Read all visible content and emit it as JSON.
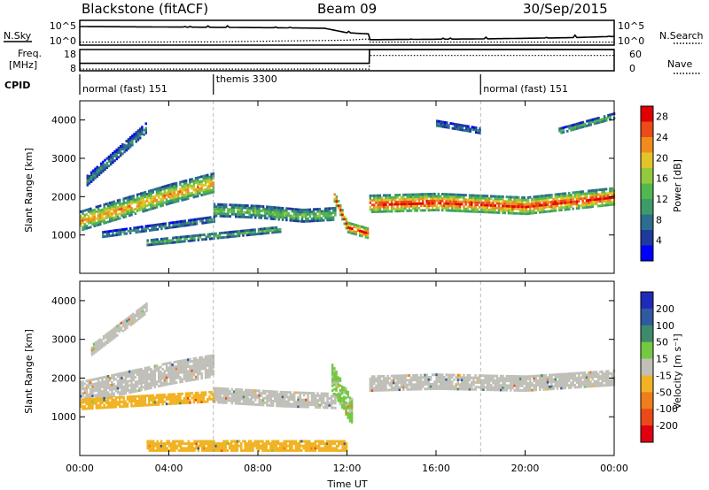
{
  "header": {
    "station": "Blackstone (fitACF)",
    "beam": "Beam 09",
    "date": "30/Sep/2015"
  },
  "sidebar_labels": {
    "nsky": "N.Sky",
    "freq_line1": "Freq.",
    "freq_line2": "[MHz]",
    "cpid": "CPID",
    "nsearch": "N.Search",
    "nave": "Nave"
  },
  "chart_data": [
    {
      "type": "line",
      "name": "noise-panel",
      "x_unit": "hours UT",
      "xlim": [
        0,
        24
      ],
      "left_ticks": [
        "10^5",
        "10^0"
      ],
      "right_ticks": [
        "10^5",
        "10^0"
      ],
      "series": [
        {
          "label": "N.Sky",
          "style": "solid",
          "x": [
            0,
            6,
            9,
            11,
            12,
            13,
            13.01,
            18,
            22,
            24
          ],
          "level": [
            0.75,
            0.72,
            0.7,
            0.68,
            0.5,
            0.45,
            0.22,
            0.25,
            0.3,
            0.35
          ]
        },
        {
          "label": "N.Search",
          "style": "dotted",
          "x": [
            0,
            6,
            12,
            13,
            13.01,
            24
          ],
          "level": [
            0.12,
            0.13,
            0.2,
            0.25,
            0.12,
            0.12
          ]
        }
      ]
    },
    {
      "type": "line",
      "name": "frequency-nave-panel",
      "xlim": [
        0,
        24
      ],
      "left_ticks": [
        "18",
        "8"
      ],
      "right_ticks": [
        "60",
        "0"
      ],
      "series": [
        {
          "label": "Freq",
          "style": "solid",
          "x": [
            0,
            13,
            13.01,
            24
          ],
          "level": [
            0.35,
            0.35,
            1.0,
            1.0
          ]
        },
        {
          "label": "Nave",
          "style": "dotted",
          "x": [
            0,
            13,
            13.01,
            24
          ],
          "level": [
            0.08,
            0.08,
            0.72,
            0.72
          ]
        }
      ]
    },
    {
      "type": "table",
      "name": "cpid-bar",
      "segments": [
        {
          "start": 0,
          "end": 6,
          "label": "normal (fast) 151"
        },
        {
          "start": 6,
          "end": 18,
          "label": "themis 3300"
        },
        {
          "start": 18,
          "end": 24,
          "label": "normal (fast) 151"
        }
      ]
    },
    {
      "type": "heatmap",
      "name": "power-panel",
      "xlim": [
        0,
        24
      ],
      "ylim": [
        0,
        4500
      ],
      "ylabel": "Slant Range [km]",
      "yticks": [
        1000,
        2000,
        3000,
        4000
      ],
      "colorbar": {
        "label": "Power [dB]",
        "ticks": [
          4,
          8,
          12,
          16,
          20,
          24,
          28
        ],
        "range": [
          0,
          30
        ]
      },
      "bands": [
        {
          "x": [
            0,
            2,
            4,
            6
          ],
          "center": [
            1350,
            1700,
            2050,
            2350
          ],
          "width": 500,
          "value": 18
        },
        {
          "x": [
            6,
            8,
            10,
            11.5
          ],
          "center": [
            1650,
            1600,
            1500,
            1550
          ],
          "width": 350,
          "value": 12
        },
        {
          "x": [
            11.4,
            12,
            12.9
          ],
          "center": [
            2000,
            1200,
            1050
          ],
          "width": 300,
          "value": 22
        },
        {
          "x": [
            13,
            16,
            20,
            24
          ],
          "center": [
            1800,
            1850,
            1750,
            2000
          ],
          "width": 450,
          "value": 22
        },
        {
          "x": [
            1,
            6
          ],
          "center": [
            1000,
            1400
          ],
          "width": 150,
          "value": 9
        },
        {
          "x": [
            3,
            9
          ],
          "center": [
            800,
            1150
          ],
          "width": 180,
          "value": 10
        },
        {
          "x": [
            0.3,
            3
          ],
          "center": [
            2400,
            3800
          ],
          "width": 250,
          "value": 8
        },
        {
          "x": [
            16,
            18
          ],
          "center": [
            3900,
            3700
          ],
          "width": 150,
          "value": 7
        },
        {
          "x": [
            21.5,
            24
          ],
          "center": [
            3700,
            4100
          ],
          "width": 150,
          "value": 11
        }
      ]
    },
    {
      "type": "heatmap",
      "name": "velocity-panel",
      "xlim": [
        0,
        24
      ],
      "ylim": [
        0,
        4500
      ],
      "ylabel": "Slant Range [km]",
      "xlabel": "Time UT",
      "yticks": [
        1000,
        2000,
        3000,
        4000
      ],
      "xticks": [
        "00:00",
        "04:00",
        "08:00",
        "12:00",
        "16:00",
        "20:00",
        "00:00"
      ],
      "colorbar": {
        "label": "Velocity [m s⁻¹]",
        "ticks": [
          "200",
          "100",
          "50",
          "15",
          "-15",
          "-50",
          "-100",
          "-200"
        ]
      },
      "bands": [
        {
          "x": [
            0,
            2,
            4,
            6
          ],
          "center": [
            1600,
            1850,
            2100,
            2300
          ],
          "width": 550,
          "value": 0
        },
        {
          "x": [
            6,
            9,
            11.5
          ],
          "center": [
            1550,
            1450,
            1400
          ],
          "width": 400,
          "value": 0
        },
        {
          "x": [
            13,
            16,
            20,
            24
          ],
          "center": [
            1850,
            1900,
            1850,
            2000
          ],
          "width": 400,
          "value": 0
        },
        {
          "x": [
            11.3,
            12.2
          ],
          "center": [
            2000,
            1100
          ],
          "width": 700,
          "value": 20
        },
        {
          "x": [
            0,
            6
          ],
          "center": [
            1300,
            1500
          ],
          "width": 250,
          "value": -30
        },
        {
          "x": [
            3,
            12
          ],
          "center": [
            250,
            250
          ],
          "width": 300,
          "value": -40
        },
        {
          "x": [
            0.5,
            3
          ],
          "center": [
            2700,
            3800
          ],
          "width": 250,
          "value": 0
        }
      ]
    }
  ]
}
